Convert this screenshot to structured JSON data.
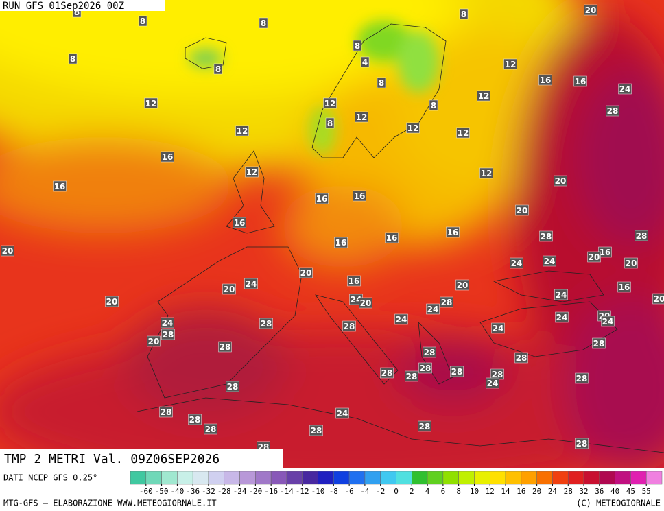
{
  "header": {
    "run": "RUN GFS 01Sep2026 00Z"
  },
  "title": "TMP 2 METRI Val. 09Z06SEP2026",
  "source": "DATI NCEP GFS 0.25°",
  "colorbar": {
    "ticks": [
      -60,
      -50,
      -40,
      -36,
      -32,
      -28,
      -24,
      -20,
      -16,
      -14,
      -12,
      -10,
      -8,
      -6,
      -4,
      -2,
      0,
      2,
      4,
      6,
      8,
      10,
      12,
      14,
      16,
      20,
      24,
      28,
      32,
      36,
      40,
      45,
      55
    ]
  },
  "footer": {
    "left": "MTG-GFS — ELABORAZIONE WWW.METEOGIORNALE.IT",
    "right": "(C) METEOGIORNALE"
  },
  "map_labels": [
    8,
    8,
    8,
    8,
    20,
    8,
    8,
    4,
    8,
    12,
    16,
    16,
    24,
    12,
    8,
    12,
    12,
    8,
    28,
    12,
    8,
    12,
    12,
    12,
    16,
    12,
    12,
    20,
    16,
    16,
    16,
    20,
    16,
    16,
    28,
    28,
    20,
    16,
    16,
    16,
    20,
    24,
    24,
    20,
    20,
    24,
    20,
    16,
    16,
    20,
    24,
    20,
    24,
    20,
    28,
    24,
    20,
    24,
    28,
    24,
    28,
    24,
    20,
    24,
    28,
    20,
    24,
    28,
    28,
    28,
    28,
    28,
    28,
    28,
    28,
    28,
    24,
    28,
    28,
    28,
    28,
    24,
    28,
    28,
    28,
    28,
    28,
    28
  ]
}
